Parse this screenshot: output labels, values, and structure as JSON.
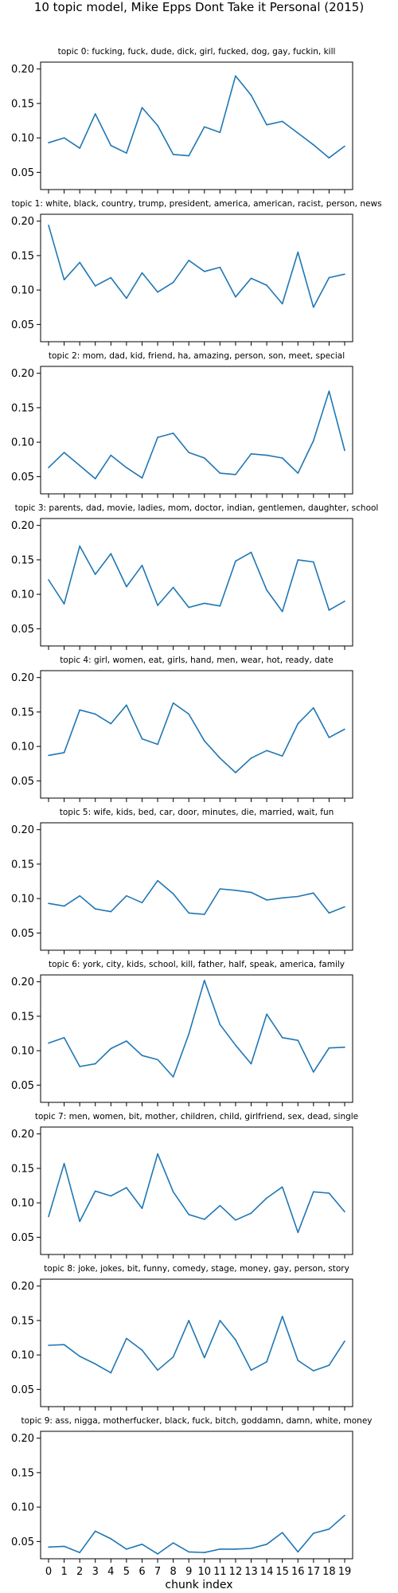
{
  "figure": {
    "title": "10 topic model, Mike Epps Dont Take it Personal (2015)",
    "xlabel": "chunk index",
    "line_color": "#1f77b4"
  },
  "chart_data": [
    {
      "type": "line",
      "title": "topic 0: fucking, fuck, dude, dick, girl, fucked, dog, gay, fuckin, kill",
      "x": [
        0,
        1,
        2,
        3,
        4,
        5,
        6,
        7,
        8,
        9,
        10,
        11,
        12,
        13,
        14,
        15,
        16,
        17,
        18,
        19
      ],
      "yticks": [
        "0.05",
        "0.10",
        "0.15",
        "0.20"
      ],
      "ylim": [
        0.025,
        0.21
      ],
      "series": [
        {
          "values": [
            0.093,
            0.1,
            0.085,
            0.135,
            0.089,
            0.078,
            0.144,
            0.118,
            0.076,
            0.074,
            0.116,
            0.108,
            0.19,
            0.162,
            0.119,
            0.124,
            0.107,
            0.09,
            0.071,
            0.088
          ]
        }
      ]
    },
    {
      "type": "line",
      "title": "topic 1: white, black, country, trump, president, america, american, racist, person, news",
      "x": [
        0,
        1,
        2,
        3,
        4,
        5,
        6,
        7,
        8,
        9,
        10,
        11,
        12,
        13,
        14,
        15,
        16,
        17,
        18,
        19
      ],
      "yticks": [
        "0.05",
        "0.10",
        "0.15",
        "0.20"
      ],
      "ylim": [
        0.025,
        0.21
      ],
      "series": [
        {
          "values": [
            0.194,
            0.115,
            0.14,
            0.106,
            0.118,
            0.088,
            0.125,
            0.097,
            0.111,
            0.143,
            0.127,
            0.133,
            0.09,
            0.117,
            0.107,
            0.08,
            0.155,
            0.075,
            0.118,
            0.123
          ]
        }
      ]
    },
    {
      "type": "line",
      "title": "topic 2: mom, dad, kid, friend, ha, amazing, person, son, meet, special",
      "x": [
        0,
        1,
        2,
        3,
        4,
        5,
        6,
        7,
        8,
        9,
        10,
        11,
        12,
        13,
        14,
        15,
        16,
        17,
        18,
        19
      ],
      "yticks": [
        "0.05",
        "0.10",
        "0.15",
        "0.20"
      ],
      "ylim": [
        0.025,
        0.21
      ],
      "series": [
        {
          "values": [
            0.063,
            0.085,
            0.066,
            0.047,
            0.081,
            0.063,
            0.048,
            0.107,
            0.113,
            0.085,
            0.077,
            0.055,
            0.053,
            0.083,
            0.081,
            0.077,
            0.055,
            0.102,
            0.174,
            0.088
          ]
        }
      ]
    },
    {
      "type": "line",
      "title": "topic 3: parents, dad, movie, ladies, mom, doctor, indian, gentlemen, daughter, school",
      "x": [
        0,
        1,
        2,
        3,
        4,
        5,
        6,
        7,
        8,
        9,
        10,
        11,
        12,
        13,
        14,
        15,
        16,
        17,
        18,
        19
      ],
      "yticks": [
        "0.05",
        "0.10",
        "0.15",
        "0.20"
      ],
      "ylim": [
        0.025,
        0.21
      ],
      "series": [
        {
          "values": [
            0.121,
            0.086,
            0.17,
            0.129,
            0.159,
            0.111,
            0.142,
            0.084,
            0.11,
            0.081,
            0.087,
            0.083,
            0.148,
            0.161,
            0.106,
            0.075,
            0.15,
            0.147,
            0.077,
            0.09
          ]
        }
      ]
    },
    {
      "type": "line",
      "title": "topic 4: girl, women, eat, girls, hand, men, wear, hot, ready, date",
      "x": [
        0,
        1,
        2,
        3,
        4,
        5,
        6,
        7,
        8,
        9,
        10,
        11,
        12,
        13,
        14,
        15,
        16,
        17,
        18,
        19
      ],
      "yticks": [
        "0.05",
        "0.10",
        "0.15",
        "0.20"
      ],
      "ylim": [
        0.025,
        0.21
      ],
      "series": [
        {
          "values": [
            0.087,
            0.091,
            0.153,
            0.147,
            0.133,
            0.16,
            0.111,
            0.103,
            0.163,
            0.147,
            0.108,
            0.083,
            0.062,
            0.083,
            0.094,
            0.086,
            0.133,
            0.156,
            0.113,
            0.125
          ]
        }
      ]
    },
    {
      "type": "line",
      "title": "topic 5: wife, kids, bed, car, door, minutes, die, married, wait, fun",
      "x": [
        0,
        1,
        2,
        3,
        4,
        5,
        6,
        7,
        8,
        9,
        10,
        11,
        12,
        13,
        14,
        15,
        16,
        17,
        18,
        19
      ],
      "yticks": [
        "0.05",
        "0.10",
        "0.15",
        "0.20"
      ],
      "ylim": [
        0.025,
        0.21
      ],
      "series": [
        {
          "values": [
            0.093,
            0.089,
            0.104,
            0.085,
            0.081,
            0.104,
            0.094,
            0.126,
            0.107,
            0.079,
            0.077,
            0.114,
            0.112,
            0.109,
            0.098,
            0.101,
            0.103,
            0.108,
            0.079,
            0.088
          ]
        }
      ]
    },
    {
      "type": "line",
      "title": "topic 6: york, city, kids, school, kill, father, half, speak, america, family",
      "x": [
        0,
        1,
        2,
        3,
        4,
        5,
        6,
        7,
        8,
        9,
        10,
        11,
        12,
        13,
        14,
        15,
        16,
        17,
        18,
        19
      ],
      "yticks": [
        "0.05",
        "0.10",
        "0.15",
        "0.20"
      ],
      "ylim": [
        0.025,
        0.21
      ],
      "series": [
        {
          "values": [
            0.111,
            0.119,
            0.077,
            0.081,
            0.103,
            0.114,
            0.093,
            0.087,
            0.062,
            0.124,
            0.202,
            0.138,
            0.108,
            0.081,
            0.153,
            0.119,
            0.115,
            0.069,
            0.104,
            0.105
          ]
        }
      ]
    },
    {
      "type": "line",
      "title": "topic 7: men, women, bit, mother, children, child, girlfriend, sex, dead, single",
      "x": [
        0,
        1,
        2,
        3,
        4,
        5,
        6,
        7,
        8,
        9,
        10,
        11,
        12,
        13,
        14,
        15,
        16,
        17,
        18,
        19
      ],
      "yticks": [
        "0.05",
        "0.10",
        "0.15",
        "0.20"
      ],
      "ylim": [
        0.025,
        0.21
      ],
      "series": [
        {
          "values": [
            0.08,
            0.157,
            0.073,
            0.117,
            0.11,
            0.122,
            0.092,
            0.171,
            0.116,
            0.083,
            0.076,
            0.096,
            0.075,
            0.085,
            0.107,
            0.123,
            0.057,
            0.116,
            0.114,
            0.087
          ]
        }
      ]
    },
    {
      "type": "line",
      "title": "topic 8: joke, jokes, bit, funny, comedy, stage, money, gay, person, story",
      "x": [
        0,
        1,
        2,
        3,
        4,
        5,
        6,
        7,
        8,
        9,
        10,
        11,
        12,
        13,
        14,
        15,
        16,
        17,
        18,
        19
      ],
      "yticks": [
        "0.05",
        "0.10",
        "0.15",
        "0.20"
      ],
      "ylim": [
        0.025,
        0.21
      ],
      "series": [
        {
          "values": [
            0.114,
            0.115,
            0.098,
            0.087,
            0.074,
            0.124,
            0.107,
            0.078,
            0.097,
            0.15,
            0.096,
            0.15,
            0.122,
            0.078,
            0.09,
            0.156,
            0.092,
            0.077,
            0.085,
            0.12
          ]
        }
      ]
    },
    {
      "type": "line",
      "title": "topic 9: ass, nigga, motherfucker, black, fuck, bitch, goddamn, damn, white, money",
      "x": [
        0,
        1,
        2,
        3,
        4,
        5,
        6,
        7,
        8,
        9,
        10,
        11,
        12,
        13,
        14,
        15,
        16,
        17,
        18,
        19
      ],
      "xticks": [
        "0",
        "1",
        "2",
        "3",
        "4",
        "5",
        "6",
        "7",
        "8",
        "9",
        "10",
        "11",
        "12",
        "13",
        "14",
        "15",
        "16",
        "17",
        "18",
        "19"
      ],
      "yticks": [
        "0.05",
        "0.10",
        "0.15",
        "0.20"
      ],
      "ylim": [
        0.025,
        0.21
      ],
      "series": [
        {
          "values": [
            0.042,
            0.043,
            0.034,
            0.065,
            0.054,
            0.039,
            0.046,
            0.032,
            0.048,
            0.035,
            0.034,
            0.039,
            0.039,
            0.04,
            0.046,
            0.063,
            0.035,
            0.062,
            0.068,
            0.088
          ]
        }
      ]
    }
  ]
}
